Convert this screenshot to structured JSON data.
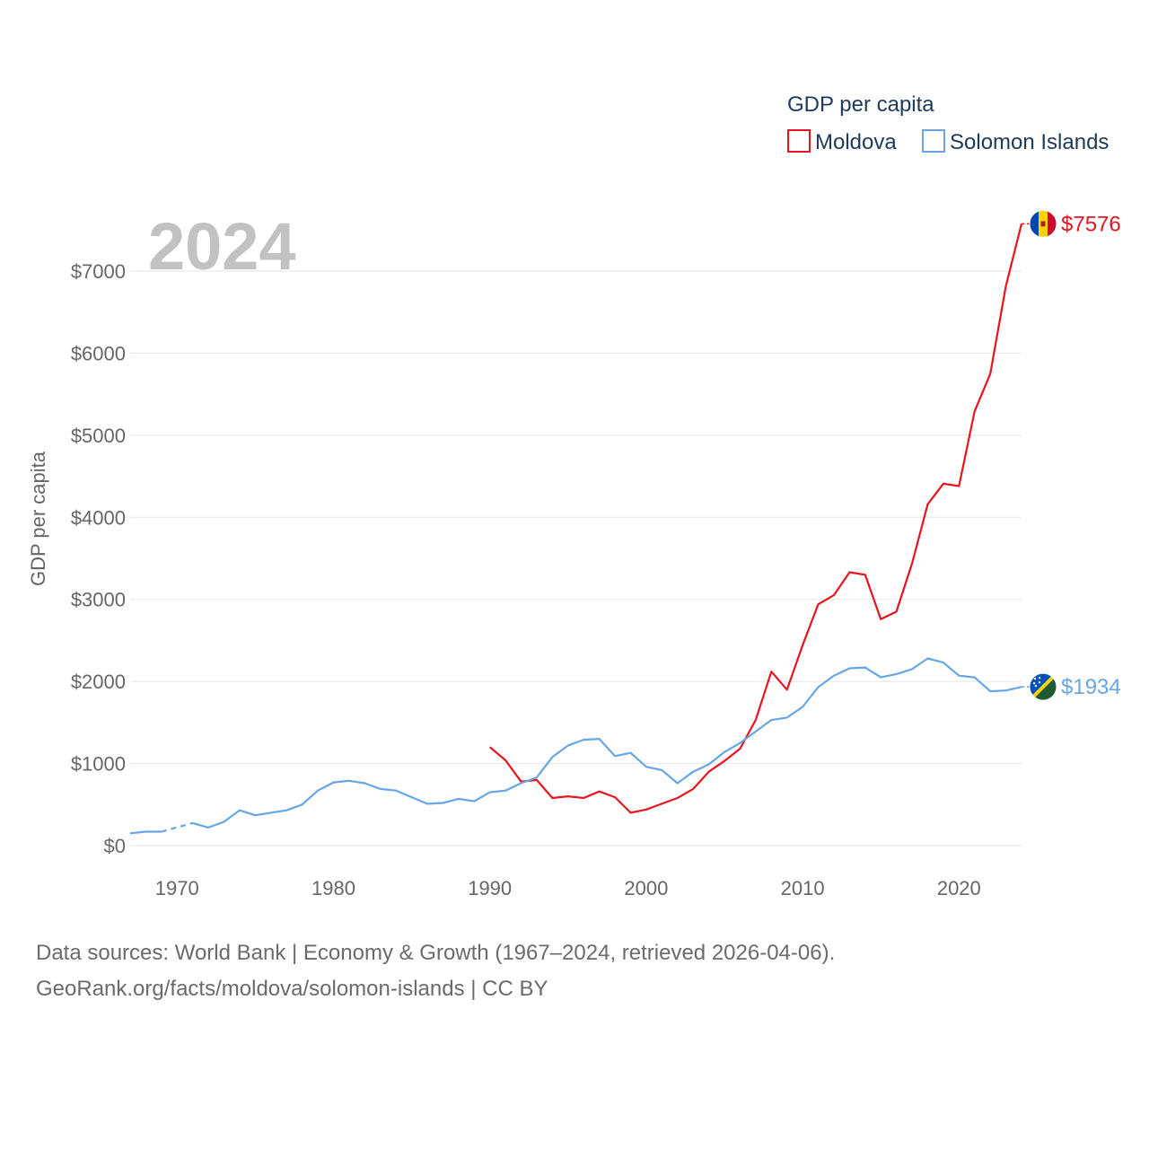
{
  "chart_data": {
    "type": "line",
    "title": "",
    "big_year_label": "2024",
    "ylabel": "GDP per capita",
    "xlabel": "",
    "xlim": [
      1967,
      2024
    ],
    "ylim": [
      0,
      7700
    ],
    "x_ticks": [
      1970,
      1980,
      1990,
      2000,
      2010,
      2020
    ],
    "x_tick_labels": [
      "1970",
      "1980",
      "1990",
      "2000",
      "2010",
      "2020"
    ],
    "y_ticks": [
      0,
      1000,
      2000,
      3000,
      4000,
      5000,
      6000,
      7000
    ],
    "y_tick_labels": [
      "$0",
      "$1000",
      "$2000",
      "$3000",
      "$4000",
      "$5000",
      "$6000",
      "$7000"
    ],
    "legend": {
      "title": "GDP per capita",
      "placement": "top-right",
      "entries": [
        "Moldova",
        "Solomon Islands"
      ]
    },
    "series": [
      {
        "name": "Moldova",
        "color": "#e8141e",
        "end_label": "$7576",
        "flag": "moldova-flag",
        "points": [
          [
            1990,
            1200
          ],
          [
            1991,
            1040
          ],
          [
            1992,
            780
          ],
          [
            1993,
            800
          ],
          [
            1994,
            580
          ],
          [
            1995,
            600
          ],
          [
            1996,
            580
          ],
          [
            1997,
            660
          ],
          [
            1998,
            590
          ],
          [
            1999,
            400
          ],
          [
            2000,
            440
          ],
          [
            2001,
            510
          ],
          [
            2002,
            580
          ],
          [
            2003,
            690
          ],
          [
            2004,
            900
          ],
          [
            2005,
            1030
          ],
          [
            2006,
            1180
          ],
          [
            2007,
            1530
          ],
          [
            2008,
            2120
          ],
          [
            2009,
            1900
          ],
          [
            2010,
            2440
          ],
          [
            2011,
            2940
          ],
          [
            2012,
            3050
          ],
          [
            2013,
            3330
          ],
          [
            2014,
            3300
          ],
          [
            2015,
            2760
          ],
          [
            2016,
            2850
          ],
          [
            2017,
            3440
          ],
          [
            2018,
            4160
          ],
          [
            2019,
            4410
          ],
          [
            2020,
            4380
          ],
          [
            2021,
            5290
          ],
          [
            2022,
            5750
          ],
          [
            2023,
            6820
          ],
          [
            2024,
            7576
          ]
        ]
      },
      {
        "name": "Solomon Islands",
        "color": "#66a6e6",
        "end_label": "$1934",
        "flag": "solomon-islands-flag",
        "gap_years": [
          [
            1969,
            1971
          ]
        ],
        "points": [
          [
            1967,
            150
          ],
          [
            1968,
            170
          ],
          [
            1969,
            170
          ],
          [
            1971,
            275
          ],
          [
            1972,
            220
          ],
          [
            1973,
            290
          ],
          [
            1974,
            430
          ],
          [
            1975,
            370
          ],
          [
            1976,
            400
          ],
          [
            1977,
            430
          ],
          [
            1978,
            500
          ],
          [
            1979,
            670
          ],
          [
            1980,
            770
          ],
          [
            1981,
            790
          ],
          [
            1982,
            760
          ],
          [
            1983,
            690
          ],
          [
            1984,
            670
          ],
          [
            1985,
            590
          ],
          [
            1986,
            510
          ],
          [
            1987,
            520
          ],
          [
            1988,
            570
          ],
          [
            1989,
            540
          ],
          [
            1990,
            650
          ],
          [
            1991,
            670
          ],
          [
            1992,
            760
          ],
          [
            1993,
            830
          ],
          [
            1994,
            1080
          ],
          [
            1995,
            1220
          ],
          [
            1996,
            1290
          ],
          [
            1997,
            1300
          ],
          [
            1998,
            1090
          ],
          [
            1999,
            1130
          ],
          [
            2000,
            960
          ],
          [
            2001,
            920
          ],
          [
            2002,
            760
          ],
          [
            2003,
            900
          ],
          [
            2004,
            990
          ],
          [
            2005,
            1140
          ],
          [
            2006,
            1250
          ],
          [
            2007,
            1390
          ],
          [
            2008,
            1530
          ],
          [
            2009,
            1560
          ],
          [
            2010,
            1690
          ],
          [
            2011,
            1930
          ],
          [
            2012,
            2070
          ],
          [
            2013,
            2160
          ],
          [
            2014,
            2170
          ],
          [
            2015,
            2050
          ],
          [
            2016,
            2090
          ],
          [
            2017,
            2150
          ],
          [
            2018,
            2280
          ],
          [
            2019,
            2230
          ],
          [
            2020,
            2070
          ],
          [
            2021,
            2050
          ],
          [
            2022,
            1880
          ],
          [
            2023,
            1890
          ],
          [
            2024,
            1934
          ]
        ]
      }
    ]
  },
  "colors": {
    "moldova": "#e8141e",
    "solomon_islands": "#66a6e6"
  },
  "source": {
    "line1": "Data sources: World Bank | Economy & Growth (1967–2024, retrieved 2026-04-06).",
    "line2": "GeoRank.org/facts/moldova/solomon-islands | CC BY"
  }
}
